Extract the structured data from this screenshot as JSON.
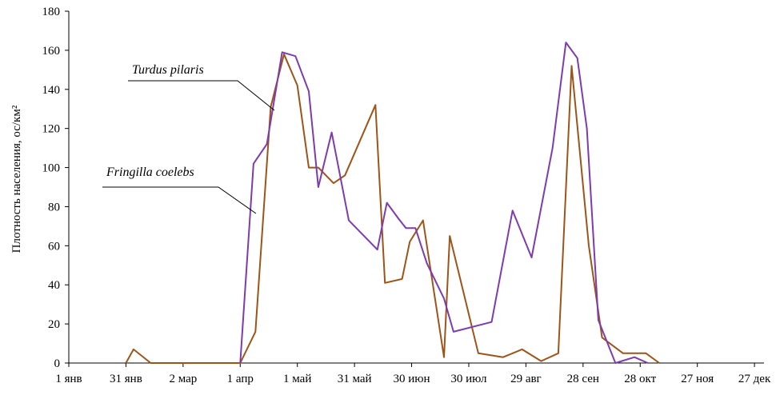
{
  "chart_data": {
    "type": "line",
    "title": "",
    "xlabel": "",
    "ylabel": "Плотность населения, ос/км²",
    "ylim": [
      0,
      180
    ],
    "yticks": [
      0,
      20,
      40,
      60,
      80,
      100,
      120,
      140,
      160,
      180
    ],
    "xlim": [
      1,
      366
    ],
    "xticks": [
      {
        "day": 1,
        "label": "1 янв"
      },
      {
        "day": 31,
        "label": "31 янв"
      },
      {
        "day": 61,
        "label": "2 мар"
      },
      {
        "day": 91,
        "label": "1 апр"
      },
      {
        "day": 121,
        "label": "1 май"
      },
      {
        "day": 151,
        "label": "31 май"
      },
      {
        "day": 181,
        "label": "30 июн"
      },
      {
        "day": 211,
        "label": "30 июл"
      },
      {
        "day": 241,
        "label": "29 авг"
      },
      {
        "day": 271,
        "label": "28 сен"
      },
      {
        "day": 301,
        "label": "28 окт"
      },
      {
        "day": 331,
        "label": "27 ноя"
      },
      {
        "day": 361,
        "label": "27 дек"
      }
    ],
    "grid": false,
    "legend": "none",
    "series": [
      {
        "name": "Turdus pilaris",
        "color": "#9c5518",
        "points": [
          [
            31,
            0
          ],
          [
            35,
            7
          ],
          [
            44,
            0
          ],
          [
            91,
            0
          ],
          [
            99,
            16
          ],
          [
            107,
            131
          ],
          [
            114,
            158
          ],
          [
            121,
            142
          ],
          [
            127,
            100
          ],
          [
            132,
            100
          ],
          [
            140,
            92
          ],
          [
            146,
            96
          ],
          [
            162,
            132
          ],
          [
            167,
            41
          ],
          [
            176,
            43
          ],
          [
            180,
            62
          ],
          [
            187,
            73
          ],
          [
            198,
            3
          ],
          [
            201,
            65
          ],
          [
            216,
            5
          ],
          [
            229,
            3
          ],
          [
            239,
            7
          ],
          [
            249,
            1
          ],
          [
            258,
            5
          ],
          [
            265,
            152
          ],
          [
            274,
            60
          ],
          [
            281,
            13
          ],
          [
            292,
            5
          ],
          [
            304,
            5
          ],
          [
            311,
            0
          ]
        ]
      },
      {
        "name": "Fringilla coelebs",
        "color": "#7e3bac",
        "points": [
          [
            91,
            0
          ],
          [
            98,
            102
          ],
          [
            105,
            112
          ],
          [
            113,
            159
          ],
          [
            120,
            157
          ],
          [
            127,
            139
          ],
          [
            132,
            90
          ],
          [
            139,
            118
          ],
          [
            148,
            73
          ],
          [
            163,
            58
          ],
          [
            168,
            82
          ],
          [
            174,
            74
          ],
          [
            178,
            69
          ],
          [
            183,
            69
          ],
          [
            189,
            51
          ],
          [
            198,
            33
          ],
          [
            203,
            16
          ],
          [
            223,
            21
          ],
          [
            234,
            78
          ],
          [
            244,
            54
          ],
          [
            255,
            110
          ],
          [
            262,
            164
          ],
          [
            268,
            156
          ],
          [
            273,
            120
          ],
          [
            279,
            22
          ],
          [
            288,
            0
          ],
          [
            298,
            3
          ],
          [
            305,
            0
          ]
        ]
      }
    ],
    "annotations": [
      {
        "text": "Turdus pilaris",
        "series": "Turdus pilaris"
      },
      {
        "text": "Fringilla coelebs",
        "series": "Fringilla coelebs"
      }
    ]
  }
}
